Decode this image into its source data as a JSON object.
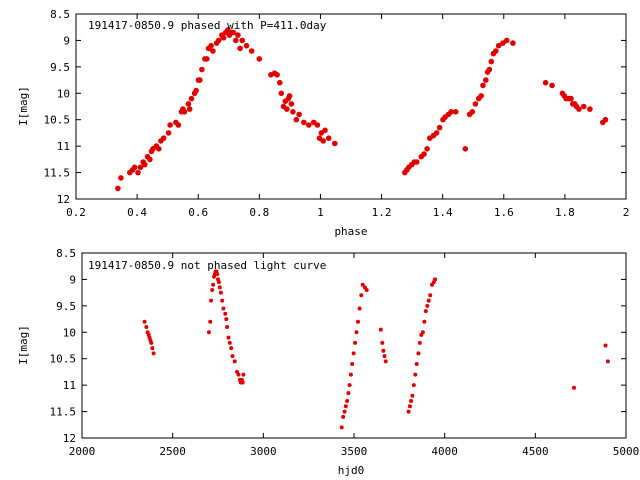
{
  "colors": {
    "points": "#e00000",
    "axes": "#000000",
    "background": "#ffffff"
  },
  "chart_data": [
    {
      "type": "scatter",
      "title": "191417-0850.9 phased with P=411.0day",
      "xlabel": "phase",
      "ylabel": "I[mag]",
      "xlim": [
        0.2,
        2
      ],
      "ylim": [
        12,
        8.5
      ],
      "y_inverted": true,
      "grid": false,
      "xticks": [
        "0.2",
        "0.4",
        "0.6",
        "0.8",
        "1",
        "1.2",
        "1.4",
        "1.6",
        "1.8",
        "2"
      ],
      "yticks": [
        "8.5",
        "9",
        "9.5",
        "10",
        "10.5",
        "11",
        "11.5",
        "12"
      ],
      "x": [
        0.337,
        0.347,
        0.376,
        0.385,
        0.392,
        0.403,
        0.411,
        0.42,
        0.425,
        0.434,
        0.442,
        0.447,
        0.452,
        0.463,
        0.471,
        0.478,
        0.487,
        0.503,
        0.508,
        0.527,
        0.535,
        0.545,
        0.55,
        0.555,
        0.568,
        0.572,
        0.578,
        0.588,
        0.593,
        0.601,
        0.605,
        0.612,
        0.622,
        0.628,
        0.634,
        0.642,
        0.648,
        0.66,
        0.667,
        0.677,
        0.683,
        0.69,
        0.697,
        0.702,
        0.709,
        0.715,
        0.723,
        0.73,
        0.737,
        0.744,
        0.758,
        0.775,
        0.8,
        0.838,
        0.85,
        0.858,
        0.867,
        0.872,
        0.879,
        0.885,
        0.89,
        0.895,
        0.899,
        0.905,
        0.91,
        0.921,
        0.93,
        0.946,
        0.962,
        0.978,
        0.99,
        0.997,
        1.003,
        1.009,
        1.015,
        1.027,
        1.047,
        1.276,
        1.283,
        1.289,
        1.299,
        1.307,
        1.315,
        1.33,
        1.339,
        1.349,
        1.358,
        1.37,
        1.38,
        1.39,
        1.401,
        1.408,
        1.419,
        1.428,
        1.443,
        1.474,
        1.488,
        1.497,
        1.507,
        1.518,
        1.526,
        1.532,
        1.541,
        1.547,
        1.553,
        1.559,
        1.566,
        1.574,
        1.583,
        1.597,
        1.61,
        1.63,
        1.737,
        1.758,
        1.792,
        1.798,
        1.804,
        1.812,
        1.82,
        1.826,
        1.832,
        1.838,
        1.846,
        1.862,
        1.882,
        1.924,
        1.933
      ],
      "y": [
        11.8,
        11.6,
        11.5,
        11.45,
        11.4,
        11.5,
        11.4,
        11.3,
        11.35,
        11.2,
        11.25,
        11.1,
        11.05,
        11.0,
        11.05,
        10.9,
        10.85,
        10.75,
        10.6,
        10.55,
        10.6,
        10.35,
        10.3,
        10.35,
        10.2,
        10.3,
        10.1,
        10.0,
        9.95,
        9.75,
        9.75,
        9.55,
        9.35,
        9.35,
        9.15,
        9.1,
        9.2,
        9.05,
        9.0,
        8.9,
        8.95,
        8.85,
        8.8,
        8.9,
        8.85,
        8.85,
        9.0,
        8.9,
        9.15,
        9.0,
        9.1,
        9.2,
        9.35,
        9.65,
        9.62,
        9.65,
        9.8,
        10.0,
        10.25,
        10.15,
        10.3,
        10.1,
        10.05,
        10.2,
        10.35,
        10.5,
        10.4,
        10.55,
        10.6,
        10.55,
        10.6,
        10.85,
        10.75,
        10.9,
        10.7,
        10.85,
        10.95,
        11.5,
        11.45,
        11.4,
        11.35,
        11.3,
        11.3,
        11.2,
        11.15,
        11.05,
        10.85,
        10.8,
        10.75,
        10.65,
        10.5,
        10.45,
        10.4,
        10.35,
        10.35,
        11.05,
        10.4,
        10.35,
        10.2,
        10.1,
        10.05,
        9.85,
        9.75,
        9.6,
        9.55,
        9.4,
        9.25,
        9.2,
        9.1,
        9.05,
        9.0,
        9.05,
        9.8,
        9.85,
        10.0,
        10.05,
        10.1,
        10.1,
        10.1,
        10.2,
        10.2,
        10.25,
        10.3,
        10.25,
        10.3,
        10.55,
        10.5
      ]
    },
    {
      "type": "scatter",
      "title": "191417-0850.9 not phased light curve",
      "xlabel": "hjd0",
      "ylabel": "I[mag]",
      "xlim": [
        2000,
        5000
      ],
      "ylim": [
        12,
        8.5
      ],
      "y_inverted": true,
      "grid": false,
      "xticks": [
        "2000",
        "2500",
        "3000",
        "3500",
        "4000",
        "4500",
        "5000"
      ],
      "yticks": [
        "8.5",
        "9",
        "9.5",
        "10",
        "10.5",
        "11",
        "11.5",
        "12"
      ],
      "x": [
        2345,
        2355,
        2362,
        2368,
        2372,
        2377,
        2382,
        2388,
        2395,
        2700,
        2707,
        2712,
        2718,
        2723,
        2728,
        2733,
        2737,
        2742,
        2746,
        2750,
        2755,
        2760,
        2766,
        2773,
        2780,
        2790,
        2796,
        2800,
        2808,
        2815,
        2823,
        2830,
        2842,
        2855,
        2863,
        2870,
        2876,
        2882,
        2886,
        2890,
        3432,
        3440,
        3448,
        3455,
        3462,
        3469,
        3476,
        3483,
        3490,
        3498,
        3506,
        3514,
        3522,
        3531,
        3540,
        3548,
        3560,
        3570,
        3648,
        3656,
        3662,
        3668,
        3675,
        3801,
        3808,
        3815,
        3822,
        3830,
        3838,
        3846,
        3855,
        3863,
        3871,
        3880,
        3888,
        3896,
        3904,
        3912,
        3920,
        3930,
        3940,
        3947,
        4713,
        4887,
        4900
      ],
      "y": [
        9.8,
        9.9,
        10.0,
        10.05,
        10.1,
        10.15,
        10.2,
        10.3,
        10.4,
        10.0,
        9.8,
        9.4,
        9.2,
        9.1,
        8.95,
        8.9,
        8.85,
        8.85,
        8.9,
        9.0,
        9.05,
        9.15,
        9.25,
        9.4,
        9.55,
        9.65,
        9.75,
        9.9,
        10.1,
        10.2,
        10.3,
        10.45,
        10.55,
        10.75,
        10.8,
        10.9,
        10.95,
        10.9,
        10.95,
        10.8,
        11.8,
        11.6,
        11.5,
        11.4,
        11.3,
        11.15,
        11.0,
        10.8,
        10.6,
        10.4,
        10.2,
        10.0,
        9.8,
        9.55,
        9.3,
        9.1,
        9.15,
        9.2,
        9.95,
        10.2,
        10.35,
        10.45,
        10.55,
        11.5,
        11.4,
        11.3,
        11.2,
        11.0,
        10.8,
        10.6,
        10.4,
        10.2,
        10.05,
        10.0,
        9.8,
        9.6,
        9.5,
        9.4,
        9.3,
        9.1,
        9.05,
        9.0,
        11.05,
        10.25,
        10.55
      ]
    }
  ]
}
